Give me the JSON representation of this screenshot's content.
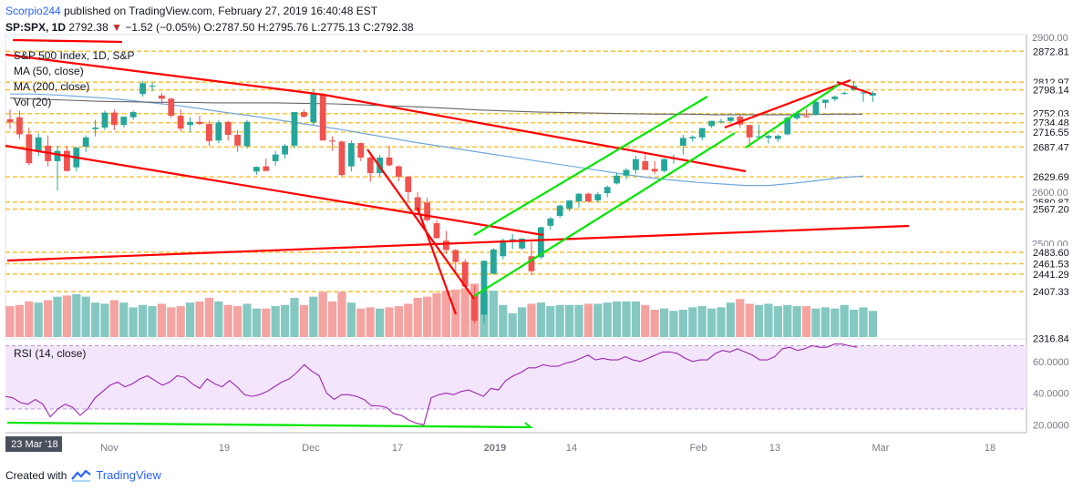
{
  "header": {
    "author": "Scorpio244",
    "published_text": "published on TradingView.com, February 27, 2019 16:40:48 EST",
    "symbol_line": "SP:SPX, 1D",
    "change_symbol": "▼",
    "change_text": "−1.52 (−0.05%)",
    "last": "2792.38",
    "ohlc": "O:2787.50 H:2795.76 L:2775.13 C:2792.38"
  },
  "footer": {
    "created_with": "Created with",
    "brand": "TradingView"
  },
  "colors": {
    "up": "#26a69a",
    "down": "#ef5350",
    "trend_red": "#ff0000",
    "trend_green": "#00e600",
    "support": "#f5c542",
    "rsi": "#9c27b0",
    "ma50": "#6fa8dc",
    "ma200": "#666666"
  },
  "chart_data": {
    "type": "candlestick",
    "title": "S&P 500 Index, 1D, S&P",
    "legend": [
      "MA (50, close)",
      "MA (200, close)",
      "Vol (20)"
    ],
    "y_axis": {
      "ticks": [
        "2900.00",
        "2600.00",
        "2500.00"
      ],
      "range": [
        2316,
        2905
      ]
    },
    "price_labels": [
      "2872.81",
      "2812.97",
      "2798.14",
      "2752.03",
      "2734.48",
      "2716.55",
      "2687.47",
      "2629.69",
      "2580.87",
      "2567.20",
      "2483.60",
      "2461.53",
      "2441.29",
      "2407.33",
      "2316.84"
    ],
    "support_levels": [
      2872.81,
      2812.97,
      2798.14,
      2752.03,
      2734.48,
      2716.55,
      2687.47,
      2629.69,
      2580.87,
      2567.2,
      2483.6,
      2461.53,
      2441.29,
      2407.33
    ],
    "x_axis_labels": [
      "23 Mar '18",
      "Nov",
      "19",
      "Dec",
      "17",
      "2019",
      "14",
      "Feb",
      "13",
      "Mar",
      "18"
    ],
    "candles": [
      {
        "o": 2741,
        "h": 2760,
        "l": 2723,
        "c": 2735
      },
      {
        "o": 2745,
        "h": 2758,
        "l": 2703,
        "c": 2712
      },
      {
        "o": 2712,
        "h": 2725,
        "l": 2652,
        "c": 2656
      },
      {
        "o": 2680,
        "h": 2714,
        "l": 2670,
        "c": 2706
      },
      {
        "o": 2690,
        "h": 2710,
        "l": 2650,
        "c": 2660
      },
      {
        "o": 2660,
        "h": 2690,
        "l": 2603,
        "c": 2680
      },
      {
        "o": 2680,
        "h": 2690,
        "l": 2640,
        "c": 2641
      },
      {
        "o": 2648,
        "h": 2688,
        "l": 2640,
        "c": 2686
      },
      {
        "o": 2688,
        "h": 2710,
        "l": 2678,
        "c": 2706
      },
      {
        "o": 2722,
        "h": 2740,
        "l": 2708,
        "c": 2725
      },
      {
        "o": 2725,
        "h": 2758,
        "l": 2720,
        "c": 2754
      },
      {
        "o": 2754,
        "h": 2760,
        "l": 2720,
        "c": 2730
      },
      {
        "o": 2730,
        "h": 2746,
        "l": 2725,
        "c": 2746
      },
      {
        "o": 2745,
        "h": 2758,
        "l": 2740,
        "c": 2755
      },
      {
        "o": 2790,
        "h": 2815,
        "l": 2785,
        "c": 2811
      },
      {
        "o": 2804,
        "h": 2812,
        "l": 2795,
        "c": 2806
      },
      {
        "o": 2787,
        "h": 2792,
        "l": 2770,
        "c": 2781
      },
      {
        "o": 2781,
        "h": 2783,
        "l": 2744,
        "c": 2748
      },
      {
        "o": 2748,
        "h": 2760,
        "l": 2718,
        "c": 2723
      },
      {
        "o": 2730,
        "h": 2745,
        "l": 2716,
        "c": 2736
      },
      {
        "o": 2736,
        "h": 2748,
        "l": 2730,
        "c": 2732
      },
      {
        "o": 2732,
        "h": 2738,
        "l": 2690,
        "c": 2699
      },
      {
        "o": 2700,
        "h": 2740,
        "l": 2695,
        "c": 2735
      },
      {
        "o": 2736,
        "h": 2738,
        "l": 2700,
        "c": 2711
      },
      {
        "o": 2711,
        "h": 2720,
        "l": 2678,
        "c": 2690
      },
      {
        "o": 2689,
        "h": 2740,
        "l": 2685,
        "c": 2736
      },
      {
        "o": 2640,
        "h": 2650,
        "l": 2634,
        "c": 2649
      },
      {
        "o": 2650,
        "h": 2665,
        "l": 2640,
        "c": 2641
      },
      {
        "o": 2660,
        "h": 2680,
        "l": 2651,
        "c": 2673
      },
      {
        "o": 2673,
        "h": 2693,
        "l": 2665,
        "c": 2690
      },
      {
        "o": 2690,
        "h": 2755,
        "l": 2685,
        "c": 2755
      },
      {
        "o": 2755,
        "h": 2760,
        "l": 2744,
        "c": 2746
      },
      {
        "o": 2735,
        "h": 2800,
        "l": 2730,
        "c": 2790
      },
      {
        "o": 2790,
        "h": 2792,
        "l": 2700,
        "c": 2700
      },
      {
        "o": 2700,
        "h": 2708,
        "l": 2680,
        "c": 2698
      },
      {
        "o": 2698,
        "h": 2700,
        "l": 2631,
        "c": 2633
      },
      {
        "o": 2650,
        "h": 2700,
        "l": 2640,
        "c": 2695
      },
      {
        "o": 2695,
        "h": 2696,
        "l": 2660,
        "c": 2667
      },
      {
        "o": 2667,
        "h": 2670,
        "l": 2620,
        "c": 2637
      },
      {
        "o": 2637,
        "h": 2672,
        "l": 2631,
        "c": 2667
      },
      {
        "o": 2667,
        "h": 2690,
        "l": 2650,
        "c": 2652
      },
      {
        "o": 2650,
        "h": 2652,
        "l": 2621,
        "c": 2630
      },
      {
        "o": 2630,
        "h": 2632,
        "l": 2582,
        "c": 2600
      },
      {
        "o": 2590,
        "h": 2600,
        "l": 2558,
        "c": 2564
      },
      {
        "o": 2580,
        "h": 2589,
        "l": 2543,
        "c": 2546
      },
      {
        "o": 2540,
        "h": 2546,
        "l": 2510,
        "c": 2511
      },
      {
        "o": 2506,
        "h": 2525,
        "l": 2480,
        "c": 2488
      },
      {
        "o": 2488,
        "h": 2490,
        "l": 2444,
        "c": 2465
      },
      {
        "o": 2465,
        "h": 2470,
        "l": 2417,
        "c": 2417
      },
      {
        "o": 2400,
        "h": 2420,
        "l": 2346,
        "c": 2351
      },
      {
        "o": 2363,
        "h": 2468,
        "l": 2346,
        "c": 2467
      },
      {
        "o": 2442,
        "h": 2492,
        "l": 2440,
        "c": 2489
      },
      {
        "o": 2476,
        "h": 2510,
        "l": 2470,
        "c": 2507
      },
      {
        "o": 2508,
        "h": 2519,
        "l": 2490,
        "c": 2509
      },
      {
        "o": 2491,
        "h": 2511,
        "l": 2488,
        "c": 2510
      },
      {
        "o": 2476,
        "h": 2504,
        "l": 2440,
        "c": 2447
      },
      {
        "o": 2474,
        "h": 2533,
        "l": 2470,
        "c": 2532
      },
      {
        "o": 2535,
        "h": 2552,
        "l": 2527,
        "c": 2549
      },
      {
        "o": 2554,
        "h": 2576,
        "l": 2550,
        "c": 2574
      },
      {
        "o": 2568,
        "h": 2580,
        "l": 2563,
        "c": 2584
      },
      {
        "o": 2582,
        "h": 2598,
        "l": 2570,
        "c": 2597
      },
      {
        "o": 2597,
        "h": 2599,
        "l": 2580,
        "c": 2582
      },
      {
        "o": 2584,
        "h": 2600,
        "l": 2580,
        "c": 2596
      },
      {
        "o": 2598,
        "h": 2613,
        "l": 2590,
        "c": 2610
      },
      {
        "o": 2617,
        "h": 2638,
        "l": 2615,
        "c": 2632
      },
      {
        "o": 2632,
        "h": 2647,
        "l": 2625,
        "c": 2643
      },
      {
        "o": 2643,
        "h": 2670,
        "l": 2635,
        "c": 2664
      },
      {
        "o": 2660,
        "h": 2673,
        "l": 2645,
        "c": 2643
      },
      {
        "o": 2645,
        "h": 2660,
        "l": 2635,
        "c": 2640
      },
      {
        "o": 2641,
        "h": 2666,
        "l": 2638,
        "c": 2664
      },
      {
        "o": 2664,
        "h": 2673,
        "l": 2655,
        "c": 2666
      },
      {
        "o": 2690,
        "h": 2711,
        "l": 2673,
        "c": 2705
      },
      {
        "o": 2704,
        "h": 2710,
        "l": 2697,
        "c": 2707
      },
      {
        "o": 2706,
        "h": 2725,
        "l": 2700,
        "c": 2724
      },
      {
        "o": 2728,
        "h": 2738,
        "l": 2724,
        "c": 2738
      },
      {
        "o": 2735,
        "h": 2742,
        "l": 2734,
        "c": 2737
      },
      {
        "o": 2738,
        "h": 2745,
        "l": 2736,
        "c": 2745
      },
      {
        "o": 2746,
        "h": 2753,
        "l": 2725,
        "c": 2731
      },
      {
        "o": 2730,
        "h": 2730,
        "l": 2687,
        "c": 2706
      },
      {
        "o": 2706,
        "h": 2731,
        "l": 2706,
        "c": 2708
      },
      {
        "o": 2705,
        "h": 2711,
        "l": 2694,
        "c": 2709
      },
      {
        "o": 2703,
        "h": 2712,
        "l": 2697,
        "c": 2709
      },
      {
        "o": 2712,
        "h": 2747,
        "l": 2710,
        "c": 2744
      },
      {
        "o": 2743,
        "h": 2757,
        "l": 2740,
        "c": 2753
      },
      {
        "o": 2747,
        "h": 2761,
        "l": 2745,
        "c": 2745
      },
      {
        "o": 2750,
        "h": 2780,
        "l": 2748,
        "c": 2775
      },
      {
        "o": 2773,
        "h": 2779,
        "l": 2762,
        "c": 2779
      },
      {
        "o": 2780,
        "h": 2787,
        "l": 2776,
        "c": 2785
      },
      {
        "o": 2790,
        "h": 2795,
        "l": 2789,
        "c": 2792
      },
      {
        "o": 2798,
        "h": 2815,
        "l": 2796,
        "c": 2806
      },
      {
        "o": 2793,
        "h": 2799,
        "l": 2775,
        "c": 2793
      },
      {
        "o": 2787,
        "h": 2796,
        "l": 2775,
        "c": 2792
      }
    ],
    "volume": [
      26,
      27,
      30,
      29,
      31,
      34,
      35,
      36,
      34,
      29,
      28,
      31,
      29,
      25,
      27,
      26,
      28,
      25,
      26,
      29,
      30,
      33,
      30,
      27,
      26,
      28,
      24,
      24,
      26,
      27,
      33,
      27,
      34,
      38,
      30,
      38,
      29,
      24,
      25,
      24,
      25,
      26,
      28,
      33,
      34,
      37,
      39,
      40,
      41,
      45,
      37,
      39,
      27,
      20,
      25,
      28,
      29,
      26,
      27,
      27,
      27,
      28,
      28,
      29,
      30,
      30,
      30,
      27,
      23,
      24,
      22,
      23,
      25,
      26,
      24,
      25,
      29,
      32,
      28,
      27,
      28,
      26,
      27,
      26,
      26,
      24,
      25,
      24,
      27,
      23,
      25,
      22
    ],
    "rsi": {
      "label": "RSI (14, close)",
      "ticks": [
        "60.0000",
        "40.0000",
        "20.0000"
      ],
      "range": [
        15,
        72
      ],
      "values": [
        38,
        37,
        34,
        33,
        36,
        33,
        25,
        30,
        33,
        31,
        26,
        30,
        37,
        41,
        45,
        47,
        44,
        46,
        49,
        51,
        48,
        45,
        47,
        51,
        50,
        46,
        43,
        49,
        46,
        44,
        48,
        44,
        39,
        38,
        39,
        41,
        44,
        47,
        49,
        53,
        58,
        54,
        51,
        40,
        36,
        39,
        39,
        38,
        36,
        32,
        32,
        31,
        27,
        26,
        23,
        21,
        20,
        37,
        39,
        40,
        39,
        41,
        42,
        40,
        38,
        43,
        42,
        48,
        51,
        53,
        56,
        56,
        58,
        57,
        57,
        59,
        60,
        62,
        64,
        61,
        62,
        61,
        61,
        63,
        61,
        60,
        62,
        64,
        66,
        66,
        65,
        62,
        60,
        61,
        61,
        65,
        67,
        66,
        68,
        66,
        64,
        61,
        61,
        63,
        68,
        69,
        67,
        68,
        70,
        69,
        69,
        71,
        71,
        70,
        69
      ]
    },
    "series": [
      {
        "name": "MA (50, close)",
        "values": [
          2790,
          2790,
          2788,
          2785,
          2782,
          2778,
          2773,
          2768,
          2762,
          2755,
          2749,
          2742,
          2735,
          2728,
          2721,
          2713,
          2705,
          2697,
          2690,
          2683,
          2676,
          2669,
          2662,
          2655,
          2648,
          2641,
          2634,
          2628,
          2623,
          2619,
          2616,
          2613,
          2613,
          2617,
          2622,
          2628,
          2631
        ]
      },
      {
        "name": "MA (200, close)",
        "values": [
          2782,
          2780,
          2778,
          2776,
          2775,
          2774,
          2774,
          2773,
          2773,
          2773,
          2772,
          2771,
          2769,
          2767,
          2765,
          2762,
          2759,
          2757,
          2755,
          2754,
          2753,
          2752,
          2751,
          2751,
          2750,
          2750,
          2750,
          2750,
          2751,
          2751
        ]
      }
    ]
  }
}
